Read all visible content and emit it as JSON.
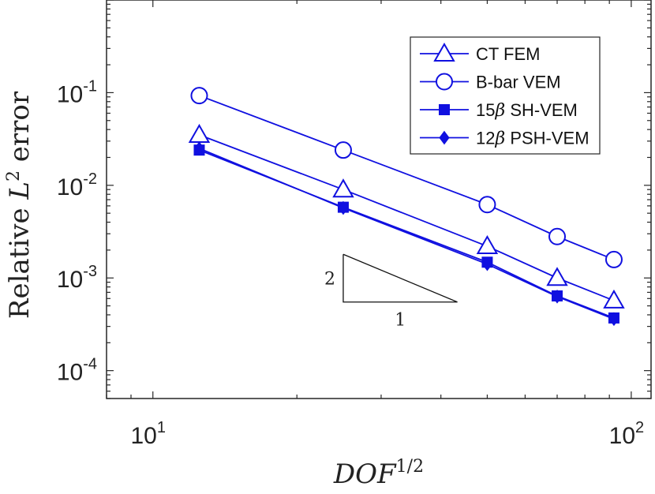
{
  "chart_data": {
    "type": "line",
    "xscale": "log",
    "yscale": "log",
    "xlim": [
      8,
      110
    ],
    "ylim": [
      5e-05,
      1
    ],
    "xticks": [
      {
        "base": "10",
        "exp": "1",
        "value": 10
      },
      {
        "base": "10",
        "exp": "2",
        "value": 100
      }
    ],
    "yticks": [
      {
        "base": "10",
        "exp": "-1",
        "value": 0.1
      },
      {
        "base": "10",
        "exp": "-2",
        "value": 0.01
      },
      {
        "base": "10",
        "exp": "-3",
        "value": 0.001
      },
      {
        "base": "10",
        "exp": "-4",
        "value": 0.0001
      }
    ],
    "xlabel": {
      "main": "DOF",
      "sup": "1/2"
    },
    "ylabel": {
      "pre": "Relative ",
      "var": "L",
      "sup": "2",
      "post": " error"
    },
    "x": [
      12.5,
      25,
      50,
      70,
      92
    ],
    "series": [
      {
        "name": "CT FEM",
        "marker": "triangle",
        "legend_num": "",
        "legend_sym": "",
        "legend_rest": "CT FEM",
        "values": [
          0.035,
          0.009,
          0.0022,
          0.001,
          0.00057
        ]
      },
      {
        "name": "B-bar VEM",
        "marker": "circle",
        "legend_num": "",
        "legend_sym": "",
        "legend_rest": "B-bar VEM",
        "values": [
          0.093,
          0.024,
          0.0062,
          0.0028,
          0.00158
        ]
      },
      {
        "name": "15β SH-VEM",
        "marker": "square",
        "legend_num": "15",
        "legend_sym": "β",
        "legend_rest": " SH-VEM",
        "values": [
          0.024,
          0.0058,
          0.00148,
          0.00064,
          0.00037
        ]
      },
      {
        "name": "12β PSH-VEM",
        "marker": "diamond",
        "legend_num": "12",
        "legend_sym": "β",
        "legend_rest": " PSH-VEM",
        "values": [
          0.025,
          0.0057,
          0.00141,
          0.00063,
          0.00036
        ]
      }
    ],
    "slope_triangle": {
      "rise_label": "2",
      "run_label": "1",
      "x_start": 25,
      "x_end": 43.3,
      "y_top": 0.0018,
      "y_bottom": 0.00055
    },
    "legend_position": "top-right",
    "grid": false,
    "line_color": "#1010e0"
  }
}
